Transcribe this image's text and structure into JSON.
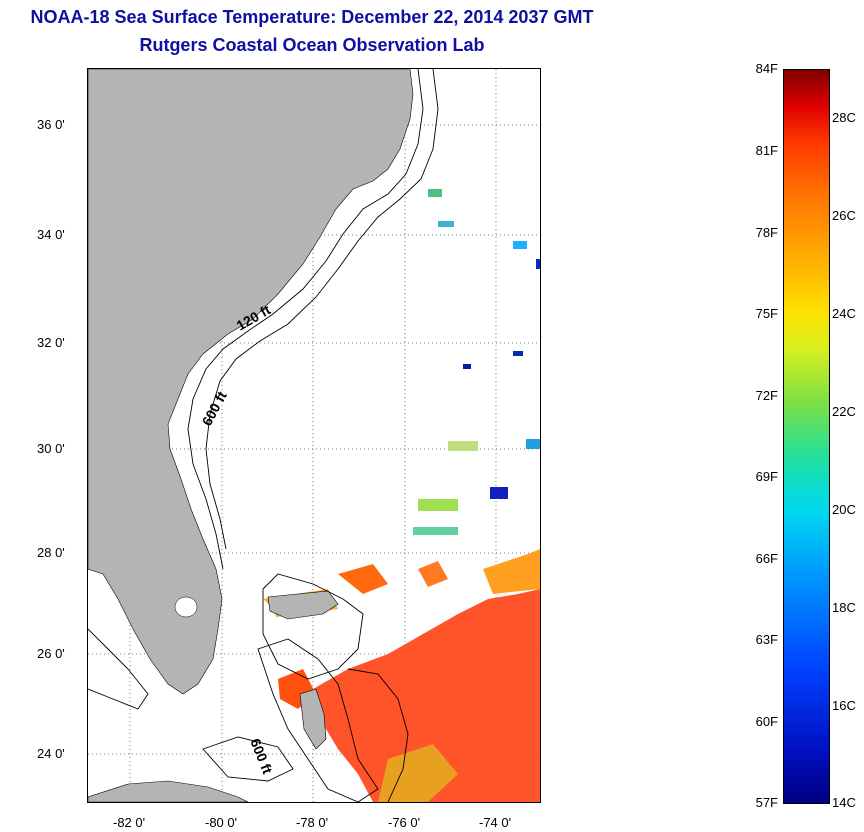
{
  "title": {
    "line1": "NOAA-18 Sea Surface Temperature:  December 22, 2014 2037 GMT",
    "line2": "Rutgers Coastal Ocean Observation Lab"
  },
  "map": {
    "lat_labels": [
      "36 0'",
      "34 0'",
      "32 0'",
      "30 0'",
      "28 0'",
      "26 0'",
      "24 0'"
    ],
    "lon_labels": [
      "-82 0'",
      "-80 0'",
      "-78 0'",
      "-76 0'",
      "-74 0'"
    ],
    "contours": [
      "120 ft",
      "600 ft",
      "600 ft"
    ],
    "colors": {
      "land": "#b4b4b4",
      "warm_sst": "#ff4a10",
      "frame": "#000000"
    }
  },
  "colorbar": {
    "fahrenheit": [
      "84F",
      "81F",
      "78F",
      "75F",
      "72F",
      "69F",
      "66F",
      "63F",
      "60F",
      "57F"
    ],
    "celsius": [
      "28C",
      "26C",
      "24C",
      "22C",
      "20C",
      "18C",
      "16C",
      "14C"
    ]
  }
}
